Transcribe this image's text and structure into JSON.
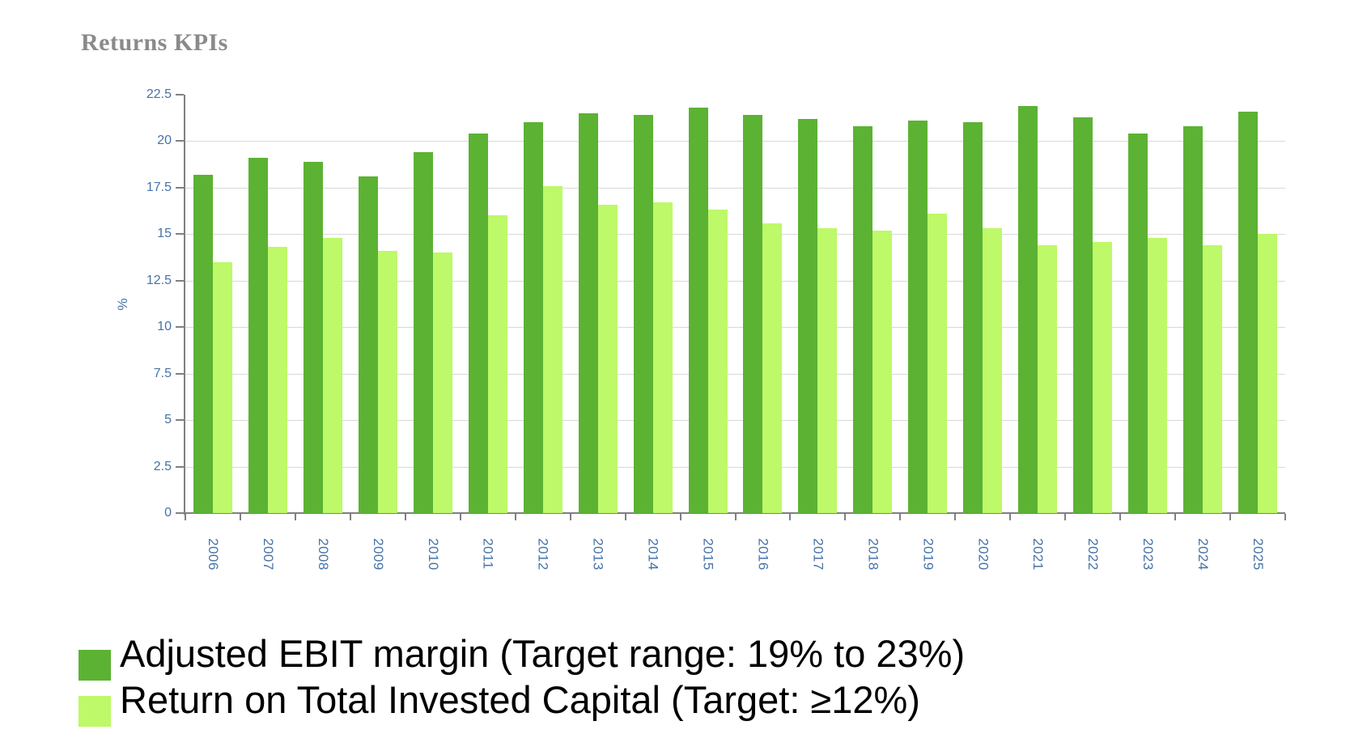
{
  "title": "Returns KPIs",
  "chart_data": {
    "type": "bar",
    "title": "Returns KPIs",
    "xlabel": "",
    "ylabel": "%",
    "ylim": [
      0,
      22.5
    ],
    "ytick_values": [
      0,
      2.5,
      5,
      7.5,
      10,
      12.5,
      15,
      17.5,
      20,
      22.5
    ],
    "ytick_labels": [
      "0",
      "2.5",
      "5",
      "7.5",
      "10",
      "12.5",
      "15",
      "17.5",
      "20",
      "22.5"
    ],
    "grid": "horizontal gridlines at each y tick up to 20",
    "legend_position": "bottom-left",
    "categories": [
      "2006",
      "2007",
      "2008",
      "2009",
      "2010",
      "2011",
      "2012",
      "2013",
      "2014",
      "2015",
      "2016",
      "2017",
      "2018",
      "2019",
      "2020",
      "2021",
      "2022",
      "2023",
      "2024",
      "2025"
    ],
    "series": [
      {
        "name": "Adjusted EBIT margin (Target range: 19% to 23%)",
        "color": "#5CB233",
        "values": [
          18.2,
          19.1,
          18.9,
          18.1,
          19.4,
          20.4,
          21.0,
          21.5,
          21.4,
          21.8,
          21.4,
          21.2,
          20.8,
          21.1,
          21.0,
          21.9,
          21.3,
          20.4,
          20.8,
          21.6
        ]
      },
      {
        "name": "Return on Total Invested Capital (Target: ≥12%)",
        "color": "#BDF968",
        "values": [
          13.5,
          14.3,
          14.8,
          14.1,
          14.0,
          16.0,
          17.6,
          16.6,
          16.7,
          16.3,
          15.6,
          15.3,
          15.2,
          16.1,
          15.3,
          14.4,
          14.6,
          14.8,
          14.4,
          15.0
        ]
      }
    ],
    "colors": {
      "axis_line": "#808080",
      "gridline": "#d8d8d8",
      "tick_label": "#4572A7",
      "title_text": "#8a8a8a",
      "legend_text": "#000000"
    }
  }
}
